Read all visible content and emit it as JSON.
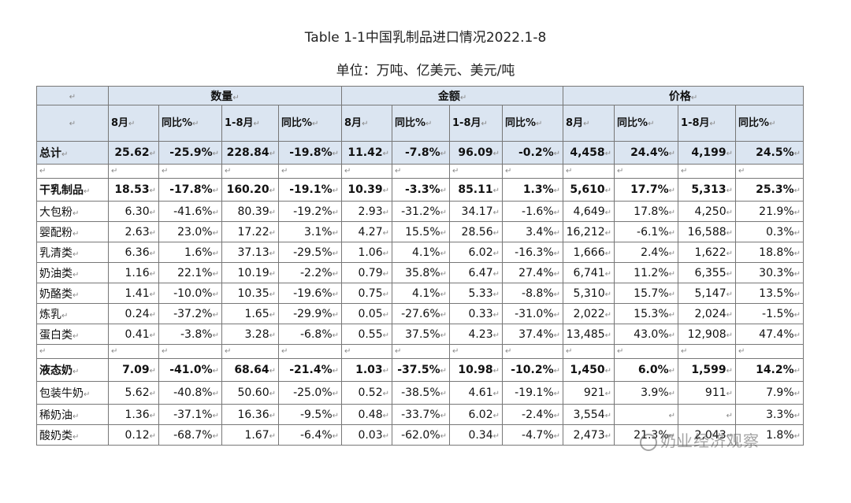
{
  "title": "Table 1-1中国乳制品进口情况2022.1-8",
  "unit_line": "单位：万吨、亿美元、美元/吨",
  "para_mark": "↵",
  "groups": [
    "数量",
    "金额",
    "价格"
  ],
  "subheaders": [
    "8月",
    "同比%",
    "1-8月",
    "同比%",
    "8月",
    "同比%",
    "1-8月",
    "同比%",
    "8月",
    "同比%",
    "1-8月",
    "同比%"
  ],
  "rows": [
    {
      "name": "总计",
      "cells": [
        "25.62",
        "-25.9%",
        "228.84",
        "-19.8%",
        "11.42",
        "-7.8%",
        "96.09",
        "-0.2%",
        "4,458",
        "24.4%",
        "4,199",
        "24.5%"
      ]
    },
    {
      "name": "干乳制品",
      "cells": [
        "18.53",
        "-17.8%",
        "160.20",
        "-19.1%",
        "10.39",
        "-3.3%",
        "85.11",
        "1.3%",
        "5,610",
        "17.7%",
        "5,313",
        "25.3%"
      ]
    },
    {
      "name": "大包粉",
      "cells": [
        "6.30",
        "-41.6%",
        "80.39",
        "-19.2%",
        "2.93",
        "-31.2%",
        "34.17",
        "-1.6%",
        "4,649",
        "17.8%",
        "4,250",
        "21.9%"
      ]
    },
    {
      "name": "婴配粉",
      "cells": [
        "2.63",
        "23.0%",
        "17.22",
        "3.1%",
        "4.27",
        "15.5%",
        "28.56",
        "3.4%",
        "16,212",
        "-6.1%",
        "16,588",
        "0.3%"
      ]
    },
    {
      "name": "乳清类",
      "cells": [
        "6.36",
        "1.6%",
        "37.13",
        "-29.5%",
        "1.06",
        "4.1%",
        "6.02",
        "-16.3%",
        "1,666",
        "2.4%",
        "1,622",
        "18.8%"
      ]
    },
    {
      "name": "奶油类",
      "cells": [
        "1.16",
        "22.1%",
        "10.19",
        "-2.2%",
        "0.79",
        "35.8%",
        "6.47",
        "27.4%",
        "6,741",
        "11.2%",
        "6,355",
        "30.3%"
      ]
    },
    {
      "name": "奶酪类",
      "cells": [
        "1.41",
        "-10.0%",
        "10.35",
        "-19.6%",
        "0.75",
        "4.1%",
        "5.33",
        "-8.8%",
        "5,310",
        "15.7%",
        "5,147",
        "13.5%"
      ]
    },
    {
      "name": "炼乳",
      "cells": [
        "0.24",
        "-37.2%",
        "1.65",
        "-29.9%",
        "0.05",
        "-27.6%",
        "0.33",
        "-31.0%",
        "2,022",
        "15.3%",
        "2,024",
        "-1.5%"
      ]
    },
    {
      "name": "蛋白类",
      "cells": [
        "0.41",
        "-3.8%",
        "3.28",
        "-6.8%",
        "0.55",
        "37.5%",
        "4.23",
        "37.4%",
        "13,485",
        "43.0%",
        "12,908",
        "47.4%"
      ]
    },
    {
      "name": "液态奶",
      "cells": [
        "7.09",
        "-41.0%",
        "68.64",
        "-21.4%",
        "1.03",
        "-37.5%",
        "10.98",
        "-10.2%",
        "1,450",
        "6.0%",
        "1,599",
        "14.2%"
      ]
    },
    {
      "name": "包装牛奶",
      "cells": [
        "5.62",
        "-40.8%",
        "50.60",
        "-25.0%",
        "0.52",
        "-38.5%",
        "4.61",
        "-19.1%",
        "921",
        "3.9%",
        "911",
        "7.9%"
      ]
    },
    {
      "name": "稀奶油",
      "cells": [
        "1.36",
        "-37.1%",
        "16.36",
        "-9.5%",
        "0.48",
        "-33.7%",
        "6.02",
        "-2.4%",
        "3,554",
        "",
        "",
        "3.3%"
      ]
    },
    {
      "name": "酸奶类",
      "cells": [
        "0.12",
        "-68.7%",
        "1.67",
        "-6.4%",
        "0.03",
        "-62.0%",
        "0.34",
        "-4.7%",
        "2,473",
        "21.3%",
        "2,043",
        "1.8%"
      ]
    }
  ],
  "watermark": "奶业经济观察",
  "colors": {
    "header_bg": "#dbe5f1",
    "border": "#777777"
  }
}
